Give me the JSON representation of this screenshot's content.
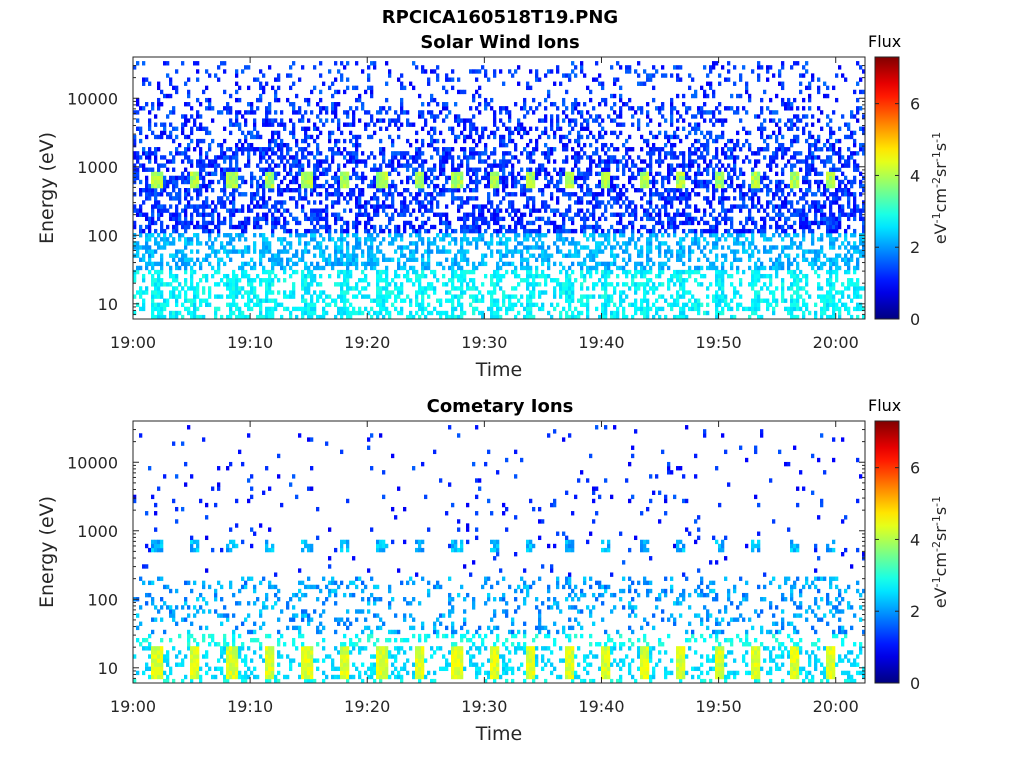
{
  "figure": {
    "title": "RPCICA160518T19.PNG"
  },
  "colorbar": {
    "title": "Flux",
    "unit_parts": [
      "eV",
      "-1",
      "cm",
      "-2",
      "sr",
      "-1",
      "s",
      "-1"
    ],
    "range": [
      0,
      7.3
    ],
    "ticks": [
      "0",
      "2",
      "4",
      "6"
    ],
    "tick_values": [
      0,
      2,
      4,
      6
    ],
    "colormap": "jet",
    "colors": [
      "#00008f",
      "#0000ff",
      "#00ffff",
      "#ffff00",
      "#ff0000",
      "#800000"
    ]
  },
  "chart_data": [
    {
      "type": "heatmap",
      "title": "Solar Wind Ions",
      "xlabel": "Time",
      "ylabel": "Energy (eV)",
      "x_ticks": [
        "19:00",
        "19:10",
        "19:20",
        "19:30",
        "19:40",
        "19:50",
        "20:00"
      ],
      "x_tick_minutes": [
        0,
        10,
        20,
        30,
        40,
        50,
        60
      ],
      "xlim_minutes": [
        0,
        62.5
      ],
      "y_ticks": [
        "10",
        "100",
        "1000",
        "10000"
      ],
      "y_tick_values": [
        10,
        100,
        1000,
        10000
      ],
      "ylim": [
        6,
        40000
      ],
      "y_scale": "log",
      "z_label": "Flux",
      "z_range": [
        0,
        7.3
      ],
      "features": [
        {
          "description": "periodic peaks",
          "energy_eV": 650,
          "flux_level": 4,
          "period_min": 3.2
        },
        {
          "description": "broad background",
          "energy_range_eV": [
            100,
            30000
          ],
          "flux_level": 1.2
        },
        {
          "description": "low energy band",
          "energy_range_eV": [
            6,
            100
          ],
          "flux_level": 2.5
        }
      ]
    },
    {
      "type": "heatmap",
      "title": "Cometary Ions",
      "xlabel": "Time",
      "ylabel": "Energy (eV)",
      "x_ticks": [
        "19:00",
        "19:10",
        "19:20",
        "19:30",
        "19:40",
        "19:50",
        "20:00"
      ],
      "x_tick_minutes": [
        0,
        10,
        20,
        30,
        40,
        50,
        60
      ],
      "xlim_minutes": [
        0,
        62.5
      ],
      "y_ticks": [
        "10",
        "100",
        "1000",
        "10000"
      ],
      "y_tick_values": [
        10,
        100,
        1000,
        10000
      ],
      "ylim": [
        6,
        40000
      ],
      "y_scale": "log",
      "z_label": "Flux",
      "z_range": [
        0,
        7.3
      ],
      "features": [
        {
          "description": "periodic low energy bursts",
          "energy_range_eV": [
            6,
            25
          ],
          "flux_level": 4.3,
          "period_min": 3.2
        },
        {
          "description": "periodic peaks",
          "energy_eV": 600,
          "flux_level": 2.3,
          "period_min": 3.2
        },
        {
          "description": "scattered band",
          "energy_range_eV": [
            30,
            200
          ],
          "flux_level": 2
        }
      ]
    }
  ]
}
